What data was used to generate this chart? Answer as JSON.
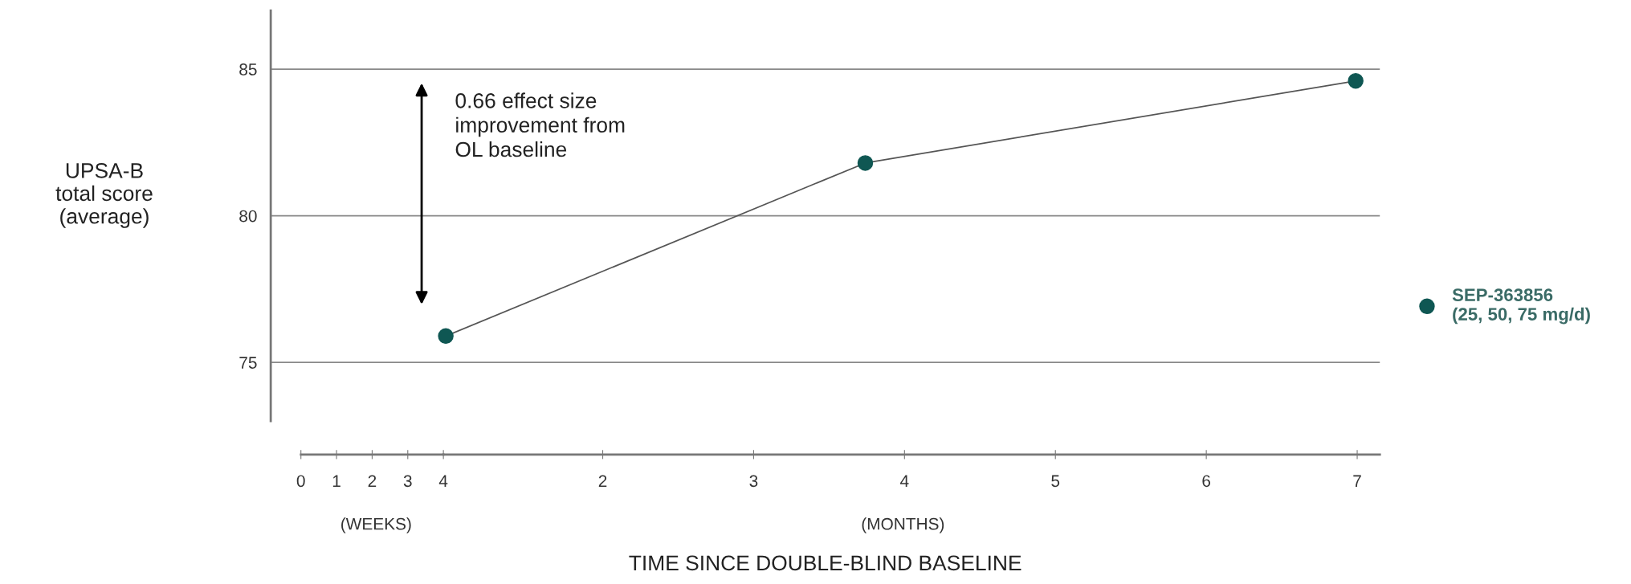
{
  "chart_data": {
    "type": "line",
    "xlabel": "TIME SINCE DOUBLE-BLIND BASELINE",
    "ylabel": "UPSA-B\ntotal score\n(average)",
    "series": [
      {
        "name": "SEP-363856\n(25, 50, 75 mg/d)",
        "color": "#0f5753",
        "x": [
          0.96,
          3.74,
          6.99
        ],
        "values": [
          75.9,
          81.8,
          84.6
        ]
      }
    ],
    "xlim": [
      -0.2,
      7.15
    ],
    "ylim": [
      73,
      87
    ],
    "xticks": [
      2,
      3,
      4,
      5,
      6,
      7
    ],
    "x2lim": [
      -0.847,
      30.29
    ],
    "x2ticks": [
      0,
      1,
      2,
      3,
      4
    ],
    "yticks": [
      75,
      80,
      85
    ],
    "grid": "y",
    "legend": "right",
    "marker": "circle",
    "line_style": "solid",
    "annotations": [
      "0.66 effect size\nimprovement from\nOL baseline",
      "(WEEKS)",
      "(MONTHS)"
    ]
  }
}
